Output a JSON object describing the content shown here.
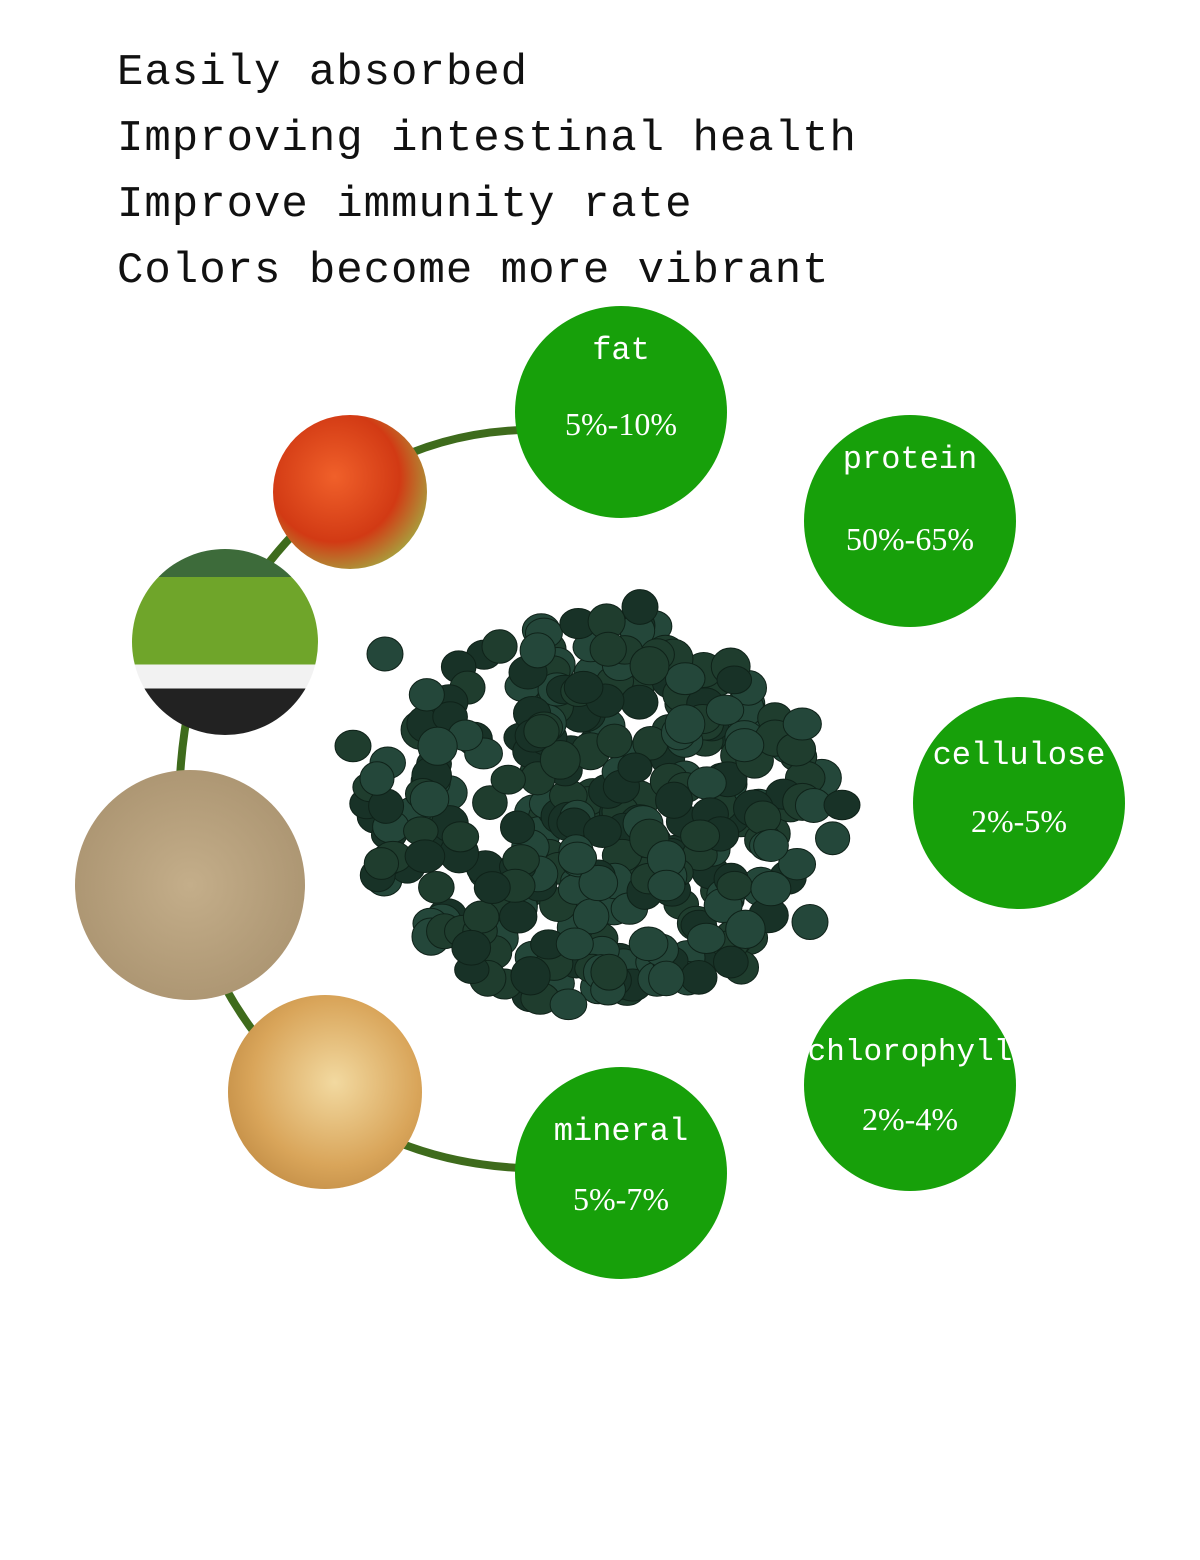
{
  "claims": [
    "Easily absorbed",
    "Improving intestinal health",
    "Improve immunity rate",
    "Colors become more vibrant"
  ],
  "nutrients": [
    {
      "name": "fat",
      "value": "5%-10%"
    },
    {
      "name": "protein",
      "value": "50%-65%"
    },
    {
      "name": "cellulose",
      "value": "2%-5%"
    },
    {
      "name": "chlorophyll",
      "value": "2%-4%"
    },
    {
      "name": "mineral",
      "value": "5%-7%"
    }
  ],
  "colors": {
    "circle": "#17a00a",
    "pellet": "#1f3d2e",
    "arc": "#3e6b1c"
  },
  "photos": [
    "shrimp",
    "green algae powder",
    "feed meal",
    "wheat"
  ]
}
